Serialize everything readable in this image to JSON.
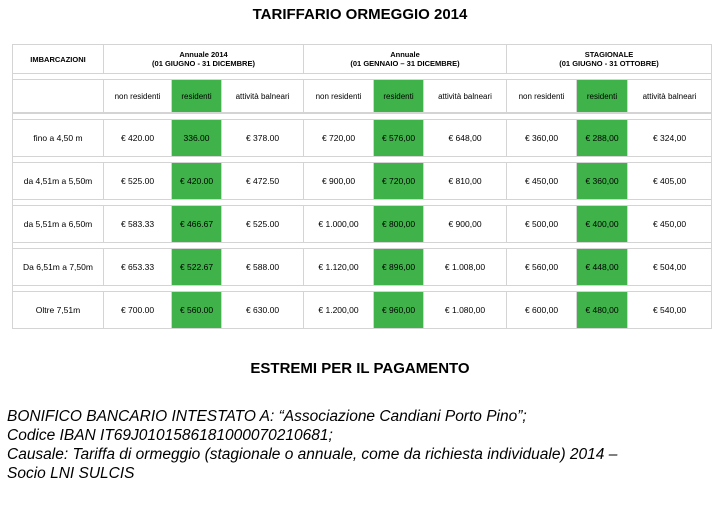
{
  "title": "TARIFFARIO ORMEGGIO 2014",
  "table": {
    "corner_header": "IMBARCAZIONI",
    "groups": [
      {
        "line1": "Annuale 2014",
        "line2": "(01 GIUGNO - 31 DICEMBRE)"
      },
      {
        "line1": "Annuale",
        "line2": "(01 GENNAIO – 31 DICEMBRE)"
      },
      {
        "line1": "STAGIONALE",
        "line2": "(01  GIUGNO - 31 OTTOBRE)"
      }
    ],
    "subheaders": [
      "non residenti",
      "residenti",
      "attività balneari",
      "non residenti",
      "residenti",
      "attività balneari",
      "non residenti",
      "residenti",
      "attività balneari"
    ],
    "rows": [
      {
        "label": "fino a 4,50 m",
        "cells": [
          "€ 420.00",
          "336.00",
          "€ 378.00",
          "€ 720,00",
          "€ 576,00",
          "€ 648,00",
          "€ 360,00",
          "€ 288,00",
          "€ 324,00"
        ]
      },
      {
        "label": "da 4,51m a 5,50m",
        "cells": [
          "€ 525.00",
          "€ 420.00",
          "€ 472.50",
          "€ 900,00",
          "€ 720,00",
          "€ 810,00",
          "€ 450,00",
          "€ 360,00",
          "€ 405,00"
        ]
      },
      {
        "label": "da 5,51m a 6,50m",
        "cells": [
          "€ 583.33",
          "€ 466.67",
          "€ 525.00",
          "€ 1.000,00",
          "€ 800,00",
          "€ 900,00",
          "€ 500,00",
          "€ 400,00",
          "€ 450,00"
        ]
      },
      {
        "label": "Da 6,51m a 7,50m",
        "cells": [
          "€ 653.33",
          "€ 522.67",
          "€ 588.00",
          "€ 1.120,00",
          "€ 896,00",
          "€ 1.008,00",
          "€ 560,00",
          "€ 448,00",
          "€ 504,00"
        ]
      },
      {
        "label": "Oltre 7,51m",
        "cells": [
          "€ 700.00",
          "€ 560.00",
          "€ 630.00",
          "€ 1.200,00",
          "€ 960,00",
          "€ 1.080,00",
          "€ 600,00",
          "€ 480,00",
          "€ 540,00"
        ]
      }
    ]
  },
  "payment": {
    "title": "ESTREMI PER IL PAGAMENTO",
    "lines": [
      "BONIFICO BANCARIO INTESTATO A: “Associazione Candiani Porto Pino”;",
      "Codice IBAN    IT69J0101586181000070210681;",
      "Causale: Tariffa di ormeggio (stagionale o annuale, come da richiesta individuale) 2014 –",
      "Socio LNI SULCIS"
    ]
  },
  "colors": {
    "resident_highlight": "#3fb34a",
    "grid_lines": "#d4d4d4"
  }
}
